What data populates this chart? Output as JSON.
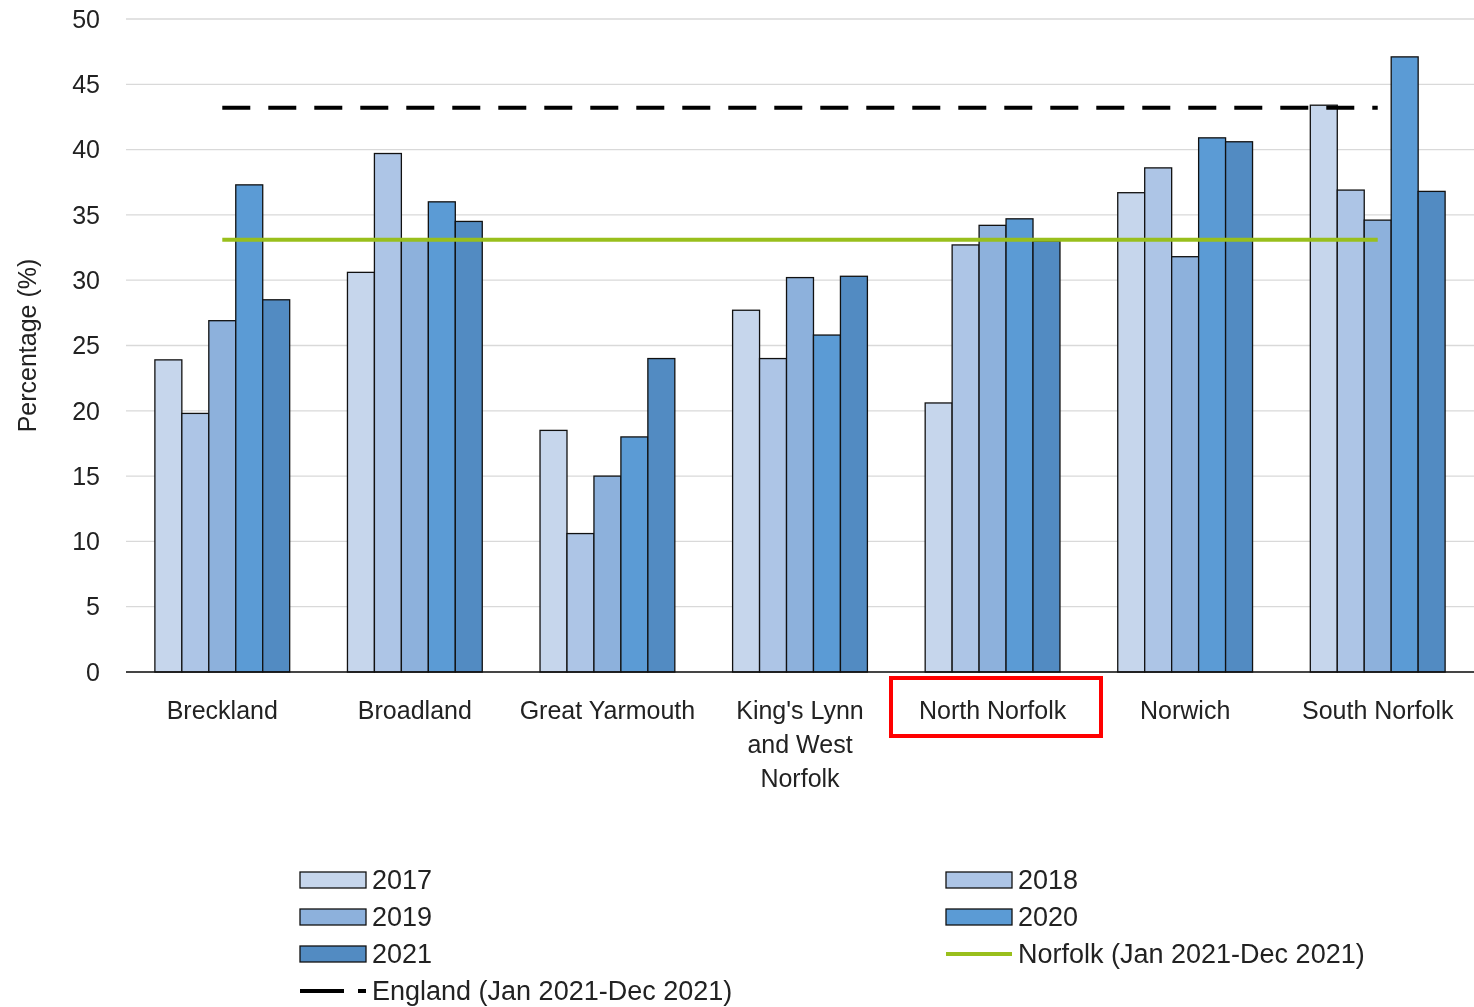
{
  "chart_data": {
    "type": "bar",
    "ylabel": "Percentage (%)",
    "categories": [
      "Breckland",
      "Broadland",
      "Great Yarmouth",
      "King's Lynn and West Norfolk",
      "North Norfolk",
      "Norwich",
      "South Norfolk"
    ],
    "series": [
      {
        "name": "2017",
        "color": "#c6d6ec",
        "values": [
          23.9,
          30.6,
          18.5,
          27.7,
          20.6,
          36.7,
          43.4
        ]
      },
      {
        "name": "2018",
        "color": "#adc5e6",
        "values": [
          19.8,
          39.7,
          10.6,
          24.0,
          32.7,
          38.6,
          36.9
        ]
      },
      {
        "name": "2019",
        "color": "#8db1dc",
        "values": [
          26.9,
          33.1,
          15.0,
          30.2,
          34.2,
          31.8,
          34.6
        ]
      },
      {
        "name": "2020",
        "color": "#5b9bd5",
        "values": [
          37.3,
          36.0,
          18.0,
          25.8,
          34.7,
          40.9,
          47.1
        ]
      },
      {
        "name": "2021",
        "color": "#528bc2",
        "values": [
          28.5,
          34.5,
          24.0,
          30.3,
          33.0,
          40.6,
          36.8
        ]
      },
      {
        "name": "Norfolk (Jan 2021-Dec 2021)",
        "type": "line",
        "color": "#99bf1c",
        "line_style": "solid",
        "values": [
          33.1,
          33.1,
          33.1,
          33.1,
          33.1,
          33.1,
          33.1
        ]
      },
      {
        "name": "England (Jan 2021-Dec 2021)",
        "type": "line",
        "color": "#000000",
        "line_style": "dashed",
        "values": [
          43.2,
          43.2,
          43.2,
          43.2,
          43.2,
          43.2,
          43.2
        ]
      }
    ],
    "ylim": [
      0,
      50
    ],
    "yticks": [
      0,
      5,
      10,
      15,
      20,
      25,
      30,
      35,
      40,
      45,
      50
    ],
    "grid": "y",
    "legend": "bottom"
  }
}
